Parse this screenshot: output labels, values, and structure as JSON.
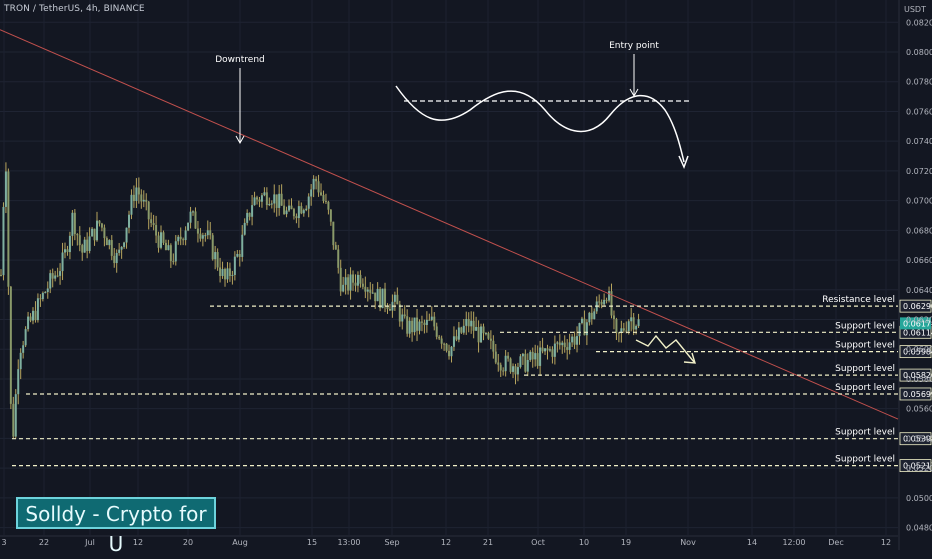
{
  "header": {
    "symbol_line": "TRON / TetherUS, 4h, BINANCE"
  },
  "price_axis": {
    "currency": "USDT"
  },
  "watermark": {
    "text": "Solldy - Crypto for U"
  },
  "colors": {
    "background": "#131722",
    "candle": "#7fb0a0",
    "wick": "#b7a55e",
    "trendline": "#c0504d",
    "level_line": "#f1f0c8",
    "annotation": "#ffffff",
    "axis_text": "#b2b5be",
    "last_price_tag": "#26a69a"
  },
  "chart_data": {
    "type": "candlestick",
    "title": "TRON / TetherUS, 4h, BINANCE",
    "ylabel": "USDT",
    "ylim": [
      0.0475,
      0.0835
    ],
    "y_ticks": [
      "0.08200",
      "0.08000",
      "0.07800",
      "0.07600",
      "0.07400",
      "0.07200",
      "0.07000",
      "0.06800",
      "0.06600",
      "0.06400",
      "0.06200",
      "0.06000",
      "0.05800",
      "0.05600",
      "0.05400",
      "0.05200",
      "0.05000",
      "0.04800"
    ],
    "x_ticks": [
      "3",
      "22",
      "Jul",
      "12",
      "20",
      "Aug",
      "15",
      "13:00",
      "Sep",
      "12",
      "21",
      "Oct",
      "10",
      "19",
      "Nov",
      "14",
      "12:00",
      "Dec",
      "12"
    ],
    "price_path": [
      [
        0,
        0.065
      ],
      [
        0.005,
        0.074
      ],
      [
        0.012,
        0.053
      ],
      [
        0.02,
        0.06
      ],
      [
        0.03,
        0.0615
      ],
      [
        0.05,
        0.064
      ],
      [
        0.07,
        0.066
      ],
      [
        0.08,
        0.069
      ],
      [
        0.09,
        0.0665
      ],
      [
        0.11,
        0.0685
      ],
      [
        0.13,
        0.066
      ],
      [
        0.15,
        0.071
      ],
      [
        0.17,
        0.068
      ],
      [
        0.19,
        0.066
      ],
      [
        0.21,
        0.069
      ],
      [
        0.23,
        0.0675
      ],
      [
        0.25,
        0.0645
      ],
      [
        0.265,
        0.0665
      ],
      [
        0.28,
        0.07
      ],
      [
        0.3,
        0.0705
      ],
      [
        0.32,
        0.069
      ],
      [
        0.34,
        0.07
      ],
      [
        0.35,
        0.0715
      ],
      [
        0.365,
        0.069
      ],
      [
        0.38,
        0.064
      ],
      [
        0.4,
        0.065
      ],
      [
        0.42,
        0.0635
      ],
      [
        0.44,
        0.063
      ],
      [
        0.45,
        0.0615
      ],
      [
        0.47,
        0.0615
      ],
      [
        0.48,
        0.0618
      ],
      [
        0.5,
        0.06
      ],
      [
        0.52,
        0.0618
      ],
      [
        0.54,
        0.0605
      ],
      [
        0.56,
        0.059
      ],
      [
        0.58,
        0.059
      ],
      [
        0.6,
        0.0595
      ],
      [
        0.62,
        0.0602
      ],
      [
        0.64,
        0.0608
      ],
      [
        0.66,
        0.0625
      ],
      [
        0.675,
        0.064
      ],
      [
        0.685,
        0.0605
      ],
      [
        0.7,
        0.0622
      ],
      [
        0.71,
        0.0618
      ]
    ],
    "price_path_x_range": [
      0,
      0.71
    ],
    "trendline": {
      "label": "Downtrend",
      "from": [
        0.0,
        0.0815
      ],
      "to": [
        1.0,
        0.0553
      ]
    },
    "levels": [
      {
        "label": "Resistance level",
        "price": 0.0629,
        "tag": "0.06290"
      },
      {
        "label": "Support level",
        "price": 0.06114,
        "tag": "0.06114"
      },
      {
        "label": "Support level",
        "price": 0.05984,
        "tag": "0.05984"
      },
      {
        "label": "Support level",
        "price": 0.05826,
        "tag": "0.05826"
      },
      {
        "label": "Support level",
        "price": 0.05699,
        "tag": "0.05699"
      },
      {
        "label": "Support level",
        "price": 0.05398,
        "tag": "0.05398"
      },
      {
        "label": "Support level",
        "price": 0.05217,
        "tag": "0.05217"
      }
    ],
    "last_price": {
      "price": 0.06174,
      "tag": "0.06174"
    },
    "annotations": [
      {
        "text": "Downtrend"
      },
      {
        "text": "Entry point"
      }
    ]
  }
}
